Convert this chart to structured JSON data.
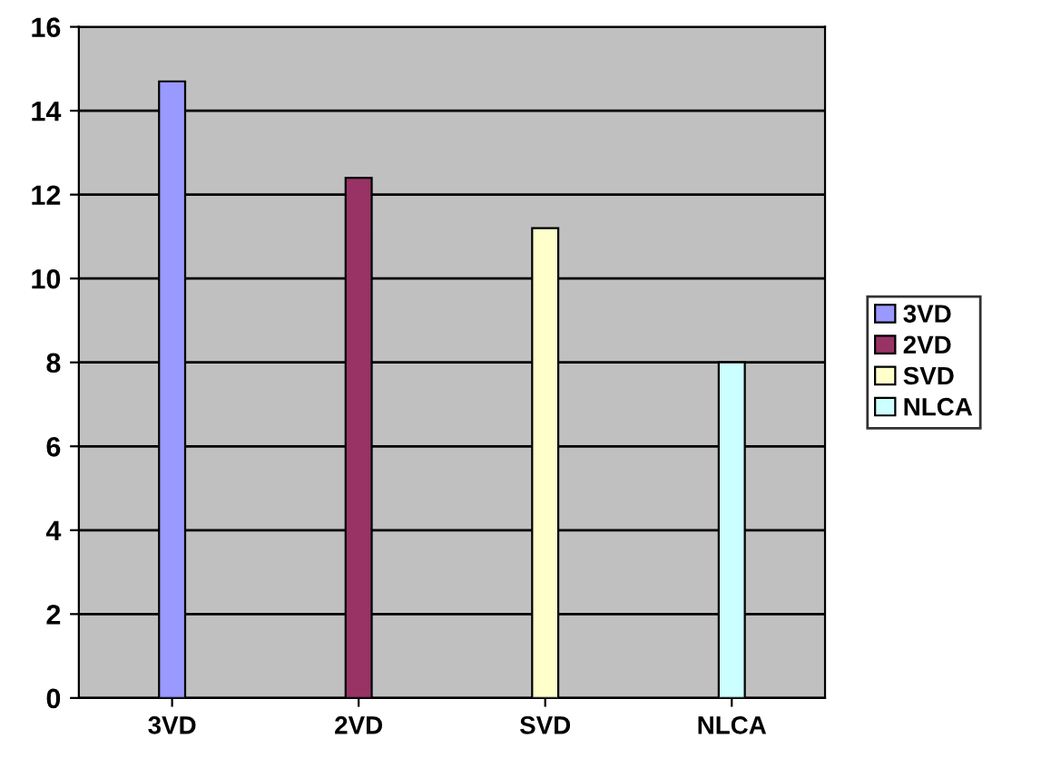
{
  "chart_data": {
    "type": "bar",
    "categories": [
      "3VD",
      "2VD",
      "SVD",
      "NLCA"
    ],
    "series": [
      {
        "name": "3VD",
        "color": "#9999ff",
        "values": [
          14.7,
          null,
          null,
          null
        ]
      },
      {
        "name": "2VD",
        "color": "#993366",
        "values": [
          null,
          12.4,
          null,
          null
        ]
      },
      {
        "name": "SVD",
        "color": "#ffffcc",
        "values": [
          null,
          null,
          11.2,
          null
        ]
      },
      {
        "name": "NLCA",
        "color": "#ccffff",
        "values": [
          null,
          null,
          null,
          8.0
        ]
      }
    ],
    "ylim": [
      0,
      16
    ],
    "yticks": [
      0,
      2,
      4,
      6,
      8,
      10,
      12,
      14,
      16
    ],
    "grid": "y",
    "legend": "right"
  }
}
